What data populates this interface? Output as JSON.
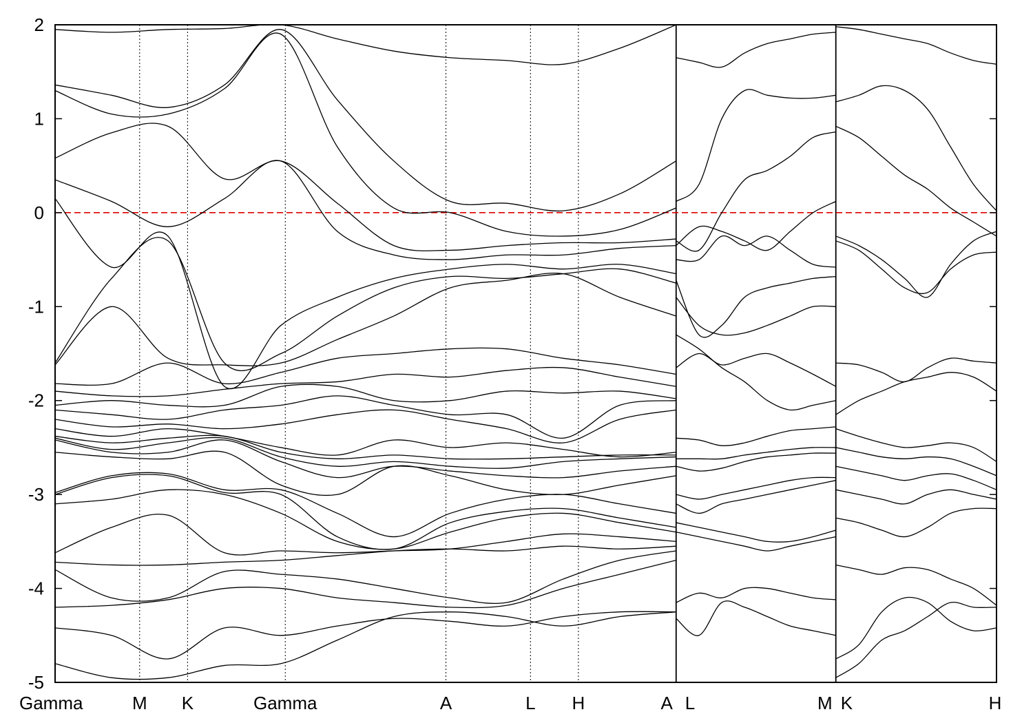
{
  "chart_data": {
    "type": "line",
    "title": "",
    "xlabel": "",
    "ylabel": "",
    "ylim": [
      -5,
      2
    ],
    "yticks": [
      -5,
      -4,
      -3,
      -2,
      -1,
      0,
      1,
      2
    ],
    "xlim": [
      0,
      9.93
    ],
    "high_symmetry_points": [
      {
        "label": "Gamma",
        "x": 0.0
      },
      {
        "label": "M",
        "x": 0.9
      },
      {
        "label": "K",
        "x": 1.41
      },
      {
        "label": "Gamma",
        "x": 2.45
      },
      {
        "label": "A",
        "x": 4.16
      },
      {
        "label": "L",
        "x": 5.06
      },
      {
        "label": "H",
        "x": 5.57
      },
      {
        "label": "A",
        "x": 6.61
      },
      {
        "label": "L",
        "x": 6.61
      },
      {
        "label": "M",
        "x": 8.31
      },
      {
        "label": "K",
        "x": 8.31
      },
      {
        "label": "H",
        "x": 10.02
      }
    ],
    "path_breaks": [
      6.61,
      8.31
    ],
    "fermi_level": 0,
    "fermi_color": "#dd0000",
    "segment_x_ranges": [
      [
        0,
        6.61
      ],
      [
        6.61,
        8.31
      ],
      [
        8.31,
        10.02
      ]
    ],
    "segment_bands": [
      [
        [
          -4.8,
          -4.95,
          -4.95,
          -4.82,
          -4.8,
          -4.55,
          -4.3,
          -4.25,
          -4.3,
          -4.4,
          -4.3,
          -4.25
        ],
        [
          -4.42,
          -4.5,
          -4.75,
          -4.42,
          -4.5,
          -4.4,
          -4.32,
          -4.35,
          -4.4,
          -4.3,
          -4.25,
          -4.25
        ],
        [
          -4.2,
          -4.18,
          -4.12,
          -4.0,
          -4.0,
          -4.1,
          -4.15,
          -4.2,
          -4.18,
          -4.0,
          -3.85,
          -3.7
        ],
        [
          -3.8,
          -4.1,
          -4.1,
          -3.82,
          -3.85,
          -3.9,
          -4.0,
          -4.1,
          -4.15,
          -3.9,
          -3.7,
          -3.6
        ],
        [
          -3.72,
          -3.75,
          -3.75,
          -3.72,
          -3.7,
          -3.65,
          -3.6,
          -3.58,
          -3.6,
          -3.55,
          -3.58,
          -3.55
        ],
        [
          -3.62,
          -3.35,
          -3.22,
          -3.62,
          -3.6,
          -3.62,
          -3.6,
          -3.58,
          -3.5,
          -3.42,
          -3.45,
          -3.5
        ],
        [
          -3.1,
          -3.05,
          -2.95,
          -3.0,
          -3.2,
          -3.5,
          -3.58,
          -3.4,
          -3.25,
          -3.2,
          -3.3,
          -3.4
        ],
        [
          -3.0,
          -2.82,
          -2.8,
          -2.98,
          -3.0,
          -3.45,
          -3.58,
          -3.3,
          -3.18,
          -3.15,
          -3.25,
          -3.35
        ],
        [
          -2.98,
          -2.8,
          -2.78,
          -2.95,
          -2.95,
          -3.2,
          -3.45,
          -3.2,
          -3.05,
          -3.0,
          -3.1,
          -3.2
        ],
        [
          -2.55,
          -2.6,
          -2.62,
          -2.55,
          -2.9,
          -3.0,
          -2.7,
          -2.8,
          -2.95,
          -3.0,
          -2.9,
          -2.8
        ],
        [
          -2.42,
          -2.55,
          -2.55,
          -2.42,
          -2.65,
          -2.82,
          -2.7,
          -2.75,
          -2.8,
          -2.82,
          -2.75,
          -2.7
        ],
        [
          -2.4,
          -2.52,
          -2.45,
          -2.4,
          -2.6,
          -2.7,
          -2.65,
          -2.7,
          -2.72,
          -2.65,
          -2.62,
          -2.6
        ],
        [
          -2.38,
          -2.45,
          -2.4,
          -2.38,
          -2.55,
          -2.62,
          -2.58,
          -2.62,
          -2.62,
          -2.6,
          -2.58,
          -2.58
        ],
        [
          -2.3,
          -2.38,
          -2.3,
          -2.38,
          -2.5,
          -2.58,
          -2.42,
          -2.5,
          -2.45,
          -2.52,
          -2.6,
          -2.55
        ],
        [
          -2.2,
          -2.28,
          -2.25,
          -2.3,
          -2.25,
          -2.15,
          -2.1,
          -2.2,
          -2.3,
          -2.45,
          -2.2,
          -2.1
        ],
        [
          -2.1,
          -2.15,
          -2.2,
          -2.1,
          -2.05,
          -1.95,
          -2.05,
          -2.15,
          -2.15,
          -2.4,
          -2.05,
          -2.0
        ],
        [
          -2.05,
          -2.0,
          -2.05,
          -2.05,
          -1.85,
          -1.85,
          -2.0,
          -2.0,
          -1.9,
          -1.92,
          -1.9,
          -1.98
        ],
        [
          -1.9,
          -1.95,
          -1.95,
          -1.88,
          -1.82,
          -1.8,
          -1.72,
          -1.75,
          -1.68,
          -1.65,
          -1.75,
          -1.85
        ],
        [
          -1.82,
          -1.82,
          -1.6,
          -1.82,
          -1.7,
          -1.55,
          -1.5,
          -1.45,
          -1.45,
          -1.55,
          -1.62,
          -1.72
        ],
        [
          -1.62,
          -1.0,
          -1.55,
          -1.62,
          -1.6,
          -1.35,
          -1.1,
          -0.8,
          -0.72,
          -0.65,
          -0.9,
          -1.1
        ],
        [
          -1.6,
          -0.7,
          -0.3,
          -1.6,
          -1.5,
          -1.1,
          -0.8,
          -0.68,
          -0.7,
          -0.65,
          -0.6,
          -0.75
        ],
        [
          0.15,
          -0.58,
          -0.25,
          -1.85,
          -1.2,
          -0.9,
          -0.7,
          -0.6,
          -0.55,
          -0.6,
          -0.55,
          -0.65
        ],
        [
          0.35,
          0.12,
          -0.15,
          0.15,
          0.55,
          -0.2,
          -0.45,
          -0.5,
          -0.45,
          -0.45,
          -0.38,
          -0.35
        ],
        [
          0.58,
          0.85,
          0.92,
          0.36,
          0.55,
          0.1,
          -0.35,
          -0.4,
          -0.35,
          -0.32,
          -0.32,
          -0.28
        ],
        [
          1.3,
          1.05,
          1.05,
          1.32,
          1.9,
          0.7,
          0.05,
          0.0,
          -0.2,
          -0.25,
          -0.18,
          0.05
        ],
        [
          1.36,
          1.25,
          1.12,
          1.36,
          1.95,
          1.2,
          0.55,
          0.12,
          0.1,
          0.02,
          0.2,
          0.55
        ],
        [
          1.95,
          1.92,
          1.95,
          1.96,
          2.0,
          1.85,
          1.72,
          1.65,
          1.62,
          1.58,
          1.75,
          2.0
        ]
      ],
      [
        [
          -4.32,
          -4.5,
          -4.15,
          -4.2,
          -4.3,
          -4.4,
          -4.45,
          -4.5
        ],
        [
          -4.15,
          -4.05,
          -4.1,
          -4.0,
          -4.0,
          -4.05,
          -4.1,
          -4.12
        ],
        [
          -3.4,
          -3.45,
          -3.5,
          -3.55,
          -3.6,
          -3.55,
          -3.5,
          -3.45
        ],
        [
          -3.3,
          -3.35,
          -3.4,
          -3.45,
          -3.5,
          -3.5,
          -3.45,
          -3.38
        ],
        [
          -3.1,
          -3.2,
          -3.1,
          -3.05,
          -3.0,
          -2.95,
          -2.9,
          -2.85
        ],
        [
          -3.0,
          -3.05,
          -3.0,
          -2.95,
          -2.9,
          -2.85,
          -2.82,
          -2.82
        ],
        [
          -2.7,
          -2.75,
          -2.72,
          -2.65,
          -2.6,
          -2.58,
          -2.56,
          -2.56
        ],
        [
          -2.62,
          -2.62,
          -2.62,
          -2.58,
          -2.55,
          -2.52,
          -2.5,
          -2.5
        ],
        [
          -2.4,
          -2.42,
          -2.48,
          -2.45,
          -2.38,
          -2.32,
          -2.3,
          -2.28
        ],
        [
          -1.65,
          -1.5,
          -1.62,
          -1.55,
          -1.5,
          -1.6,
          -1.72,
          -1.85
        ],
        [
          -1.3,
          -1.45,
          -1.65,
          -1.8,
          -2.0,
          -2.1,
          -2.05,
          -2.0
        ],
        [
          -0.9,
          -1.2,
          -1.3,
          -1.28,
          -1.2,
          -1.1,
          -1.0,
          -1.0
        ],
        [
          -0.72,
          -1.3,
          -1.2,
          -0.9,
          -0.8,
          -0.75,
          -0.7,
          -0.68
        ],
        [
          -0.5,
          -0.5,
          -0.25,
          -0.35,
          -0.25,
          -0.4,
          -0.55,
          -0.58
        ],
        [
          -0.35,
          -0.15,
          -0.2,
          -0.3,
          -0.4,
          -0.2,
          0.0,
          0.12
        ],
        [
          -0.3,
          -0.4,
          0.0,
          0.35,
          0.45,
          0.6,
          0.8,
          0.86
        ],
        [
          0.12,
          0.3,
          1.0,
          1.3,
          1.25,
          1.22,
          1.22,
          1.25
        ],
        [
          1.65,
          1.6,
          1.55,
          1.7,
          1.8,
          1.85,
          1.9,
          1.92
        ]
      ],
      [
        [
          -4.75,
          -4.6,
          -4.25,
          -4.1,
          -4.15,
          -4.35,
          -4.45,
          -4.42
        ],
        [
          -4.95,
          -4.8,
          -4.55,
          -4.45,
          -4.3,
          -4.15,
          -4.2,
          -4.2
        ],
        [
          -3.75,
          -3.8,
          -3.85,
          -3.78,
          -3.8,
          -3.9,
          -4.0,
          -4.18
        ],
        [
          -3.25,
          -3.3,
          -3.38,
          -3.45,
          -3.35,
          -3.2,
          -3.15,
          -3.15
        ],
        [
          -2.95,
          -3.0,
          -3.05,
          -3.1,
          -3.0,
          -2.95,
          -3.0,
          -3.05
        ],
        [
          -2.7,
          -2.75,
          -2.8,
          -2.85,
          -2.8,
          -2.78,
          -2.85,
          -2.95
        ],
        [
          -2.5,
          -2.55,
          -2.6,
          -2.62,
          -2.6,
          -2.62,
          -2.7,
          -2.8
        ],
        [
          -2.3,
          -2.38,
          -2.45,
          -2.5,
          -2.48,
          -2.45,
          -2.5,
          -2.65
        ],
        [
          -2.15,
          -2.0,
          -1.9,
          -1.8,
          -1.75,
          -1.7,
          -1.75,
          -1.9
        ],
        [
          -1.6,
          -1.62,
          -1.7,
          -1.8,
          -1.65,
          -1.55,
          -1.58,
          -1.6
        ],
        [
          -0.3,
          -0.4,
          -0.6,
          -0.8,
          -0.85,
          -0.6,
          -0.45,
          -0.42
        ],
        [
          -0.25,
          -0.35,
          -0.5,
          -0.7,
          -0.9,
          -0.55,
          -0.3,
          -0.2
        ],
        [
          0.92,
          0.8,
          0.6,
          0.4,
          0.25,
          0.05,
          -0.1,
          -0.25
        ],
        [
          1.18,
          1.25,
          1.35,
          1.3,
          1.1,
          0.7,
          0.3,
          0.02
        ],
        [
          1.98,
          1.95,
          1.9,
          1.85,
          1.8,
          1.7,
          1.62,
          1.58
        ]
      ]
    ]
  }
}
